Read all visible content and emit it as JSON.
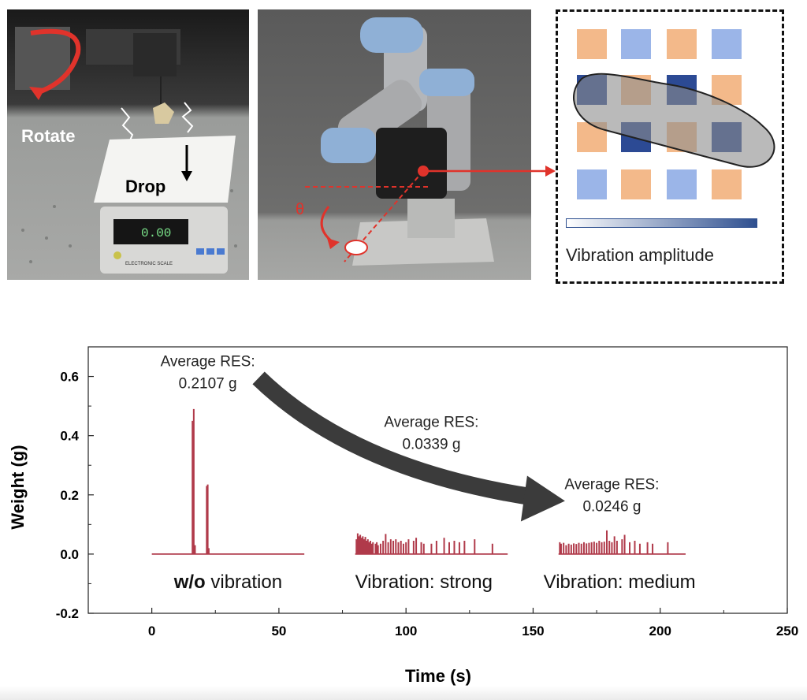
{
  "panels": {
    "left_photo": {
      "rotate_label": "Rotate",
      "drop_label": "Drop",
      "scale_display": "0.00",
      "scale_brand": "ELECTRONIC SCALE"
    },
    "middle_photo": {
      "angle_label": "θ"
    },
    "inset": {
      "amplitude_label": "Vibration amplitude",
      "colors": {
        "orange": "#f3b98a",
        "light_blue": "#9bb5e8",
        "dark_blue": "#2c4a94",
        "ellipse_fill": "#9a9a9a"
      }
    }
  },
  "chart_data": {
    "type": "line",
    "xlabel": "Time (s)",
    "ylabel": "Weight (g)",
    "xlim": [
      -25,
      250
    ],
    "ylim": [
      -0.2,
      0.7
    ],
    "xticks": [
      0,
      50,
      100,
      150,
      200,
      250
    ],
    "yticks": [
      -0.2,
      0.0,
      0.2,
      0.4,
      0.6
    ],
    "color": "#b03a4a",
    "series": [
      {
        "name": "w/o vibration",
        "x_range": [
          0,
          60
        ],
        "peaks": [
          [
            16.0,
            0.45
          ],
          [
            16.5,
            0.49
          ],
          [
            17.0,
            0.03
          ],
          [
            21.6,
            0.23
          ],
          [
            22.0,
            0.235
          ],
          [
            22.4,
            0.02
          ]
        ]
      },
      {
        "name": "Vibration: strong",
        "x_range": [
          80,
          140
        ],
        "peaks": [
          [
            80.5,
            0.05
          ],
          [
            81,
            0.07
          ],
          [
            81.5,
            0.06
          ],
          [
            82,
            0.065
          ],
          [
            82.5,
            0.055
          ],
          [
            83,
            0.06
          ],
          [
            83.5,
            0.05
          ],
          [
            84,
            0.058
          ],
          [
            84.5,
            0.045
          ],
          [
            85,
            0.05
          ],
          [
            85.5,
            0.04
          ],
          [
            86,
            0.045
          ],
          [
            86.5,
            0.035
          ],
          [
            87,
            0.04
          ],
          [
            88,
            0.035
          ],
          [
            88.5,
            0.04
          ],
          [
            89,
            0.03
          ],
          [
            90,
            0.035
          ],
          [
            91,
            0.045
          ],
          [
            92,
            0.068
          ],
          [
            93,
            0.04
          ],
          [
            94,
            0.05
          ],
          [
            95,
            0.045
          ],
          [
            96,
            0.05
          ],
          [
            97,
            0.04
          ],
          [
            98,
            0.045
          ],
          [
            99,
            0.035
          ],
          [
            100,
            0.04
          ],
          [
            101,
            0.05
          ],
          [
            103,
            0.045
          ],
          [
            104,
            0.055
          ],
          [
            106,
            0.04
          ],
          [
            107,
            0.035
          ],
          [
            110,
            0.035
          ],
          [
            112,
            0.045
          ],
          [
            115,
            0.055
          ],
          [
            117,
            0.04
          ],
          [
            119,
            0.045
          ],
          [
            121,
            0.04
          ],
          [
            123,
            0.045
          ],
          [
            127,
            0.05
          ],
          [
            134,
            0.035
          ]
        ]
      },
      {
        "name": "Vibration: medium",
        "x_range": [
          160,
          210
        ],
        "peaks": [
          [
            160.5,
            0.04
          ],
          [
            161,
            0.035
          ],
          [
            162,
            0.038
          ],
          [
            163,
            0.03
          ],
          [
            164,
            0.035
          ],
          [
            165,
            0.032
          ],
          [
            166,
            0.036
          ],
          [
            167,
            0.034
          ],
          [
            168,
            0.038
          ],
          [
            169,
            0.035
          ],
          [
            170,
            0.04
          ],
          [
            171,
            0.036
          ],
          [
            172,
            0.038
          ],
          [
            173,
            0.04
          ],
          [
            174,
            0.042
          ],
          [
            175,
            0.038
          ],
          [
            176,
            0.045
          ],
          [
            177,
            0.04
          ],
          [
            178,
            0.042
          ],
          [
            179,
            0.08
          ],
          [
            180,
            0.045
          ],
          [
            181,
            0.04
          ],
          [
            182,
            0.06
          ],
          [
            183,
            0.045
          ],
          [
            185,
            0.05
          ],
          [
            186,
            0.065
          ],
          [
            188,
            0.04
          ],
          [
            190,
            0.045
          ],
          [
            192,
            0.035
          ],
          [
            195,
            0.04
          ],
          [
            197,
            0.035
          ],
          [
            203,
            0.04
          ]
        ]
      }
    ],
    "annotations": [
      {
        "line1": "Average RES:",
        "line2": "0.2107 g",
        "x": 22,
        "y": 0.635
      },
      {
        "line1": "Average RES:",
        "line2": "0.0339 g",
        "x": 110,
        "y": 0.43
      },
      {
        "line1": "Average RES:",
        "line2": "0.0246 g",
        "x": 181,
        "y": 0.22
      }
    ],
    "series_labels": [
      {
        "bold": "w/o",
        "text": " vibration",
        "x": 30
      },
      {
        "bold": "",
        "text": "Vibration: strong",
        "x": 107
      },
      {
        "bold": "",
        "text": "Vibration: medium",
        "x": 184
      }
    ]
  }
}
